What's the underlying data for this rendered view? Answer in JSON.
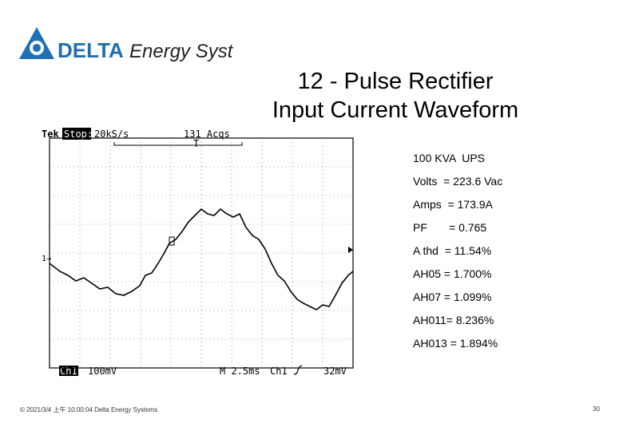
{
  "logo": {
    "brand": "DELTA",
    "tagline": "Energy Systems"
  },
  "title": [
    "12 - Pulse Rectifier",
    "Input Current Waveform"
  ],
  "scope": {
    "header": {
      "brand": "Tek",
      "status": "Stop:",
      "rate": "20kS/s",
      "acquisitions": "131 Acqs",
      "trigger": "T"
    },
    "channel_marker": "1→",
    "footer": {
      "channel": "Ch1",
      "scale": "100mV",
      "timebase": "M 2.5ms",
      "trigger_source": "Ch1",
      "trigger_level": "32mV"
    }
  },
  "specs": [
    "100 KVA  UPS",
    "Volts  = 223.6 Vac",
    "Amps  = 173.9A",
    "PF       = 0.765",
    "A thd  = 11.54%",
    "AH05 = 1.700%",
    "AH07 = 1.099%",
    "AH011= 8.236%",
    "AH013 = 1.894%"
  ],
  "footer": {
    "note": "© 2021/3/4 上午 10:00:04 Delta Energy Systems",
    "page": "30"
  }
}
